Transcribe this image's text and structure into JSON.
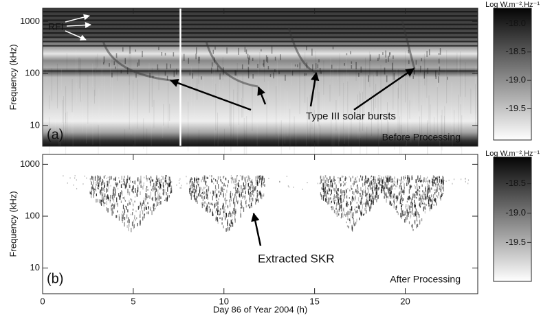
{
  "chart_data": [
    {
      "type": "spectrogram",
      "panel_label": "(a)",
      "note": "Before Processing",
      "annotations": [
        "RFI",
        "Type III solar bursts"
      ],
      "ylabel": "Frequency (kHz)",
      "log_y": true,
      "xlim": [
        0,
        24
      ],
      "xticks": [
        0,
        5,
        10,
        15,
        20
      ],
      "ylim": [
        4,
        1800
      ],
      "yticks": [
        10,
        100,
        1000
      ],
      "marker_x": 7.6,
      "colorbar": {
        "label": "Log W.m⁻².Hz⁻¹",
        "lim": [
          -20.05,
          -17.73
        ],
        "ticks": [
          {
            "value": -18,
            "label": "-18.0"
          },
          -18.5,
          {
            "value": -19,
            "label": "-19.0"
          },
          -19.5
        ]
      }
    },
    {
      "type": "spectrogram",
      "panel_label": "(b)",
      "note": "After Processing",
      "annotations": [
        "Extracted SKR"
      ],
      "ylabel": "Frequency (kHz)",
      "xlabel": "Day 86 of Year 2004 (h)",
      "log_y": true,
      "xlim": [
        0,
        24
      ],
      "xticks": [
        0,
        5,
        10,
        15,
        20
      ],
      "ylim": [
        3.2,
        1550
      ],
      "yticks": [
        10,
        100,
        1000
      ],
      "colorbar": {
        "label": "Log W.m⁻².Hz⁻¹",
        "lim": [
          -20.16,
          -18.05
        ],
        "ticks": [
          -18.5,
          {
            "value": -19,
            "label": "-19.0"
          },
          -19.5
        ]
      }
    }
  ]
}
